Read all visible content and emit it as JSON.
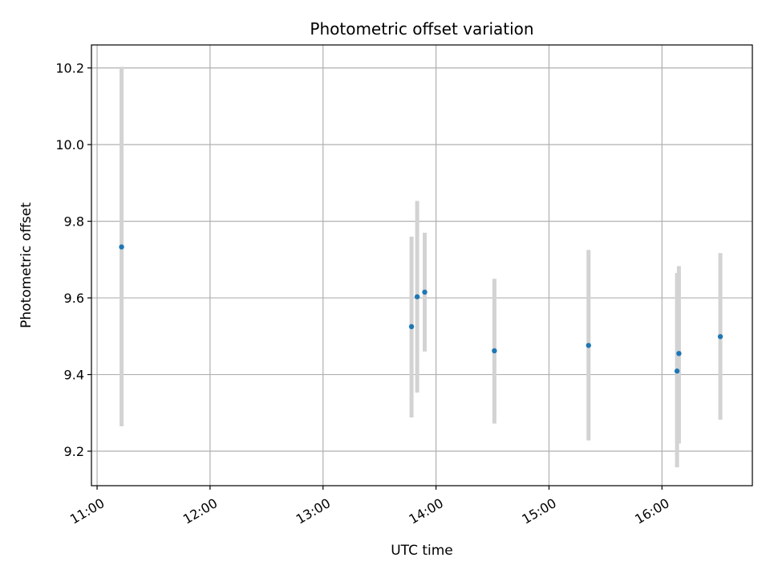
{
  "chart_data": {
    "type": "scatter",
    "title": "Photometric offset variation",
    "xlabel": "UTC time",
    "ylabel": "Photometric offset",
    "x_type": "time",
    "xlim": [
      "10:57",
      "16:48"
    ],
    "ylim": [
      9.11,
      10.26
    ],
    "x_ticks": [
      "11:00",
      "12:00",
      "13:00",
      "14:00",
      "15:00",
      "16:00"
    ],
    "y_ticks": [
      9.2,
      9.4,
      9.6,
      9.8,
      10.0,
      10.2
    ],
    "y_tick_labels": [
      "9.2",
      "9.4",
      "9.6",
      "9.8",
      "10.0",
      "10.2"
    ],
    "grid": true,
    "colors": {
      "marker": "#1f77b4",
      "errorbar": "#d3d3d3",
      "grid": "#b0b0b0"
    },
    "series": [
      {
        "x": [
          "11:13",
          "13:47",
          "13:50",
          "13:54",
          "14:31",
          "15:21",
          "16:08",
          "16:09",
          "16:31"
        ],
        "y": [
          9.733,
          9.525,
          9.603,
          9.615,
          9.462,
          9.476,
          9.409,
          9.455,
          9.499
        ],
        "yerr_low": [
          9.265,
          9.288,
          9.353,
          9.46,
          9.272,
          9.228,
          9.158,
          9.22,
          9.282
        ],
        "yerr_high": [
          10.203,
          9.76,
          9.853,
          9.77,
          9.65,
          9.725,
          9.665,
          9.683,
          9.717
        ]
      }
    ]
  }
}
